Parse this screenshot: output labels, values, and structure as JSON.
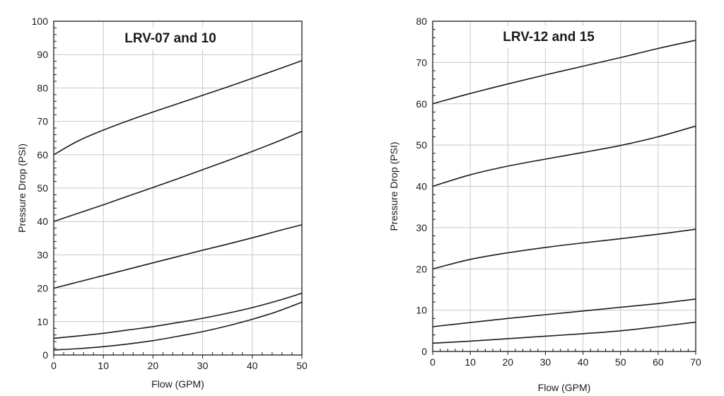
{
  "chart_data": [
    {
      "type": "line",
      "title": "LRV-07 and 10",
      "xlabel": "Flow (GPM)",
      "ylabel": "Pressure Drop (PSI)",
      "xlim": [
        0,
        50
      ],
      "ylim": [
        0,
        100
      ],
      "xticks": [
        "0",
        "10",
        "20",
        "30",
        "40",
        "50"
      ],
      "yticks": [
        "0",
        "10",
        "20",
        "30",
        "40",
        "50",
        "60",
        "70",
        "80",
        "90",
        "100"
      ],
      "grid": true,
      "legend": "none",
      "line_color": "#1a1a1a",
      "grid_color": "#c8c8c8",
      "series": [
        {
          "x": [
            0,
            5,
            10,
            15,
            20,
            25,
            30,
            35,
            40,
            45,
            50
          ],
          "y": [
            60,
            64.2,
            67.4,
            70.2,
            72.8,
            75.3,
            77.8,
            80.3,
            82.9,
            85.5,
            88.2
          ]
        },
        {
          "x": [
            0,
            5,
            10,
            15,
            20,
            25,
            30,
            35,
            40,
            45,
            50
          ],
          "y": [
            40,
            42.5,
            45,
            47.6,
            50.2,
            52.8,
            55.5,
            58.2,
            61,
            63.9,
            67
          ]
        },
        {
          "x": [
            0,
            5,
            10,
            15,
            20,
            25,
            30,
            35,
            40,
            45,
            50
          ],
          "y": [
            20,
            21.9,
            23.8,
            25.7,
            27.6,
            29.5,
            31.4,
            33.2,
            35.1,
            37.1,
            39
          ]
        },
        {
          "x": [
            0,
            5,
            10,
            15,
            20,
            25,
            30,
            35,
            40,
            45,
            50
          ],
          "y": [
            5,
            5.7,
            6.5,
            7.5,
            8.5,
            9.7,
            11,
            12.5,
            14.2,
            16.2,
            18.5
          ]
        },
        {
          "x": [
            0,
            5,
            10,
            15,
            20,
            25,
            30,
            35,
            40,
            45,
            50
          ],
          "y": [
            1.5,
            1.9,
            2.5,
            3.3,
            4.3,
            5.6,
            7,
            8.7,
            10.7,
            13,
            15.8
          ]
        }
      ]
    },
    {
      "type": "line",
      "title": "LRV-12 and 15",
      "xlabel": "Flow (GPM)",
      "ylabel": "Pressure Drop (PSI)",
      "xlim": [
        0,
        70
      ],
      "ylim": [
        0,
        80
      ],
      "xticks": [
        "0",
        "10",
        "20",
        "30",
        "40",
        "50",
        "60",
        "70"
      ],
      "yticks": [
        "0",
        "10",
        "20",
        "30",
        "40",
        "50",
        "60",
        "70",
        "80"
      ],
      "grid": true,
      "legend": "none",
      "line_color": "#1a1a1a",
      "grid_color": "#c8c8c8",
      "series": [
        {
          "x": [
            0,
            10,
            20,
            30,
            40,
            50,
            60,
            70
          ],
          "y": [
            60,
            62.5,
            64.8,
            67,
            69.1,
            71.2,
            73.4,
            75.4
          ]
        },
        {
          "x": [
            0,
            10,
            20,
            30,
            40,
            50,
            60,
            70
          ],
          "y": [
            40,
            42.8,
            44.9,
            46.6,
            48.2,
            49.9,
            52,
            54.6
          ]
        },
        {
          "x": [
            0,
            10,
            20,
            30,
            40,
            50,
            60,
            70
          ],
          "y": [
            20,
            22.3,
            23.9,
            25.2,
            26.3,
            27.3,
            28.4,
            29.6
          ]
        },
        {
          "x": [
            0,
            10,
            20,
            30,
            40,
            50,
            60,
            70
          ],
          "y": [
            6,
            7,
            8,
            8.9,
            9.8,
            10.7,
            11.6,
            12.7
          ]
        },
        {
          "x": [
            0,
            10,
            20,
            30,
            40,
            50,
            60,
            70
          ],
          "y": [
            2,
            2.5,
            3.1,
            3.7,
            4.3,
            5,
            6,
            7.1
          ]
        }
      ]
    }
  ]
}
